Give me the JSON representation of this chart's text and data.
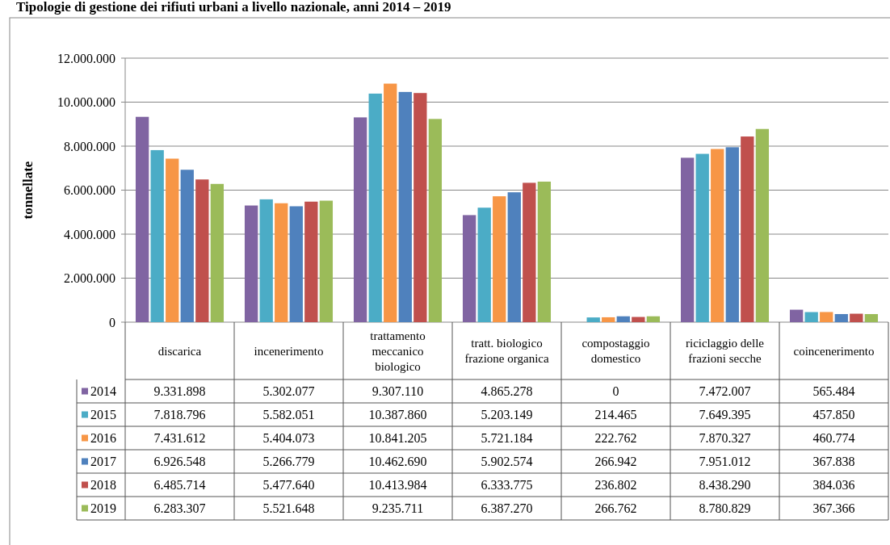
{
  "chart_data": {
    "type": "bar",
    "title": "Tipologie di gestione dei rifiuti urbani a livello nazionale, anni 2014 – 2019",
    "ylabel": "tonnellate",
    "categories": [
      "discarica",
      "incenerimento",
      "trattamento meccanico biologico",
      "tratt. biologico frazione organica",
      "compostaggio domestico",
      "riciclaggio delle frazioni secche",
      "coincenerimento"
    ],
    "series": [
      {
        "name": "2014",
        "color": "#8064a2",
        "values": [
          9331898,
          5302077,
          9307110,
          4865278,
          0,
          7472007,
          565484
        ],
        "value_labels": [
          "9.331.898",
          "5.302.077",
          "9.307.110",
          "4.865.278",
          "0",
          "7.472.007",
          "565.484"
        ]
      },
      {
        "name": "2015",
        "color": "#4bacc6",
        "values": [
          7818796,
          5582051,
          10387860,
          5203149,
          214465,
          7649395,
          457850
        ],
        "value_labels": [
          "7.818.796",
          "5.582.051",
          "10.387.860",
          "5.203.149",
          "214.465",
          "7.649.395",
          "457.850"
        ]
      },
      {
        "name": "2016",
        "color": "#f79646",
        "values": [
          7431612,
          5404073,
          10841205,
          5721184,
          222762,
          7870327,
          460774
        ],
        "value_labels": [
          "7.431.612",
          "5.404.073",
          "10.841.205",
          "5.721.184",
          "222.762",
          "7.870.327",
          "460.774"
        ]
      },
      {
        "name": "2017",
        "color": "#4f81bd",
        "values": [
          6926548,
          5266779,
          10462690,
          5902574,
          266942,
          7951012,
          367838
        ],
        "value_labels": [
          "6.926.548",
          "5.266.779",
          "10.462.690",
          "5.902.574",
          "266.942",
          "7.951.012",
          "367.838"
        ]
      },
      {
        "name": "2018",
        "color": "#c0504d",
        "values": [
          6485714,
          5477640,
          10413984,
          6333775,
          236802,
          8438290,
          384036
        ],
        "value_labels": [
          "6.485.714",
          "5.477.640",
          "10.413.984",
          "6.333.775",
          "236.802",
          "8.438.290",
          "384.036"
        ]
      },
      {
        "name": "2019",
        "color": "#9bbb59",
        "values": [
          6283307,
          5521648,
          9235711,
          6387270,
          266762,
          8780829,
          367366
        ],
        "value_labels": [
          "6.283.307",
          "5.521.648",
          "9.235.711",
          "6.387.270",
          "266.762",
          "8.780.829",
          "367.366"
        ]
      }
    ],
    "ylim": [
      0,
      12000000
    ],
    "yticks": [
      {
        "value": 0,
        "label": "0"
      },
      {
        "value": 2000000,
        "label": "2.000.000"
      },
      {
        "value": 4000000,
        "label": "4.000.000"
      },
      {
        "value": 6000000,
        "label": "6.000.000"
      },
      {
        "value": 8000000,
        "label": "8.000.000"
      },
      {
        "value": 10000000,
        "label": "10.000.000"
      },
      {
        "value": 12000000,
        "label": "12.000.000"
      }
    ],
    "grid": "y",
    "legend": "bottom"
  }
}
